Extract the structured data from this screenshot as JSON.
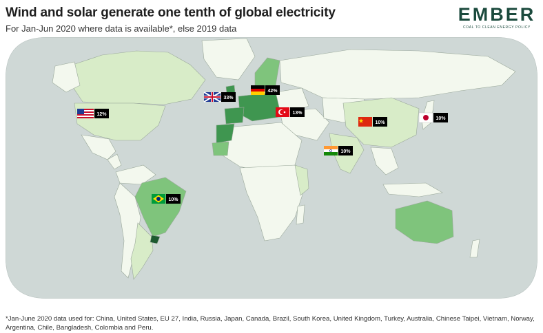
{
  "header": {
    "title": "Wind and solar generate one tenth of global electricity",
    "subtitle": "For Jan-Jun 2020 where data is available*, else 2019 data"
  },
  "logo": {
    "wordmark": "EMBER",
    "tagline": "COAL TO CLEAN ENERGY POLICY"
  },
  "map": {
    "colors": {
      "ocean": "#cfd8d6",
      "land_low": "#f3f8ee",
      "land_light": "#d8ecc8",
      "land_mid": "#7fc47c",
      "land_high": "#3f9650",
      "land_top": "#1c5a30",
      "borders": "#9aa89a"
    },
    "callouts": [
      {
        "country": "United States",
        "flag": "us-flag-icon",
        "value": "12%"
      },
      {
        "country": "United Kingdom",
        "flag": "gb-flag-icon",
        "value": "33%"
      },
      {
        "country": "Germany",
        "flag": "de-flag-icon",
        "value": "42%"
      },
      {
        "country": "Turkey",
        "flag": "tr-flag-icon",
        "value": "13%"
      },
      {
        "country": "China",
        "flag": "cn-flag-icon",
        "value": "10%"
      },
      {
        "country": "Japan",
        "flag": "jp-flag-icon",
        "value": "10%"
      },
      {
        "country": "India",
        "flag": "in-flag-icon",
        "value": "10%"
      },
      {
        "country": "Brazil",
        "flag": "br-flag-icon",
        "value": "10%"
      }
    ]
  },
  "footnote": "*Jan-June 2020 data used for: China, United States, EU 27, India, Russia, Japan, Canada, Brazil, South Korea, United Kingdom, Turkey, Australia, Chinese Taipei, Vietnam, Norway, Argentina, Chile, Bangladesh, Colombia and Peru."
}
